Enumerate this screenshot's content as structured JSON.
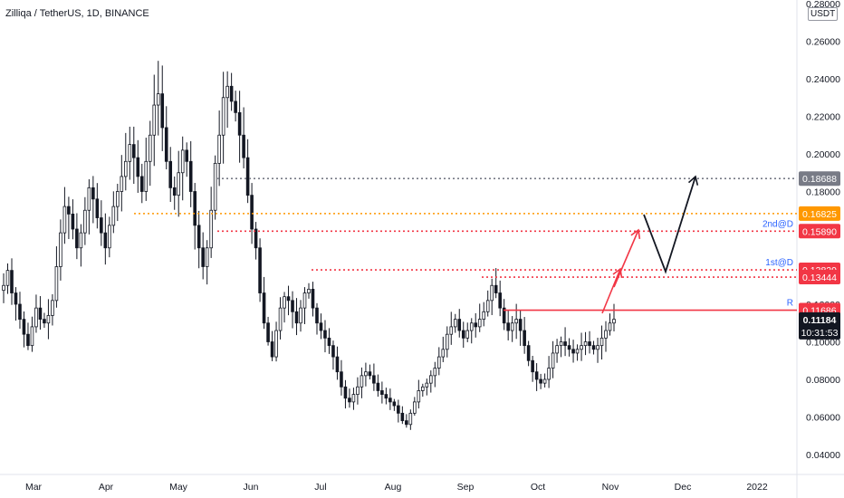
{
  "chart_data": {
    "type": "candlestick",
    "title": "Zilliqa / TetherUS, 1D, BINANCE",
    "unit": "USDT",
    "ylim": [
      0.03,
      0.28
    ],
    "y_ticks": [
      "0.28000",
      "0.26000",
      "0.24000",
      "0.22000",
      "0.20000",
      "0.18000",
      "0.16000",
      "0.14000",
      "0.12000",
      "0.10000",
      "0.08000",
      "0.06000",
      "0.04000"
    ],
    "x_ticks": [
      "Mar",
      "Apr",
      "May",
      "Jun",
      "Jul",
      "Aug",
      "Sep",
      "Oct",
      "Nov",
      "Dec",
      "2022"
    ],
    "colors": {
      "up": "#131722",
      "down": "#131722",
      "red": "#f23645",
      "orange": "#ff9800",
      "gray": "#787b86",
      "blue": "#2962ff"
    },
    "levels": [
      {
        "name": "target-3",
        "value": 0.18688,
        "label": "0.18688",
        "color": "#787b86",
        "style": "dotted"
      },
      {
        "name": "target-orange",
        "value": 0.16825,
        "label": "0.16825",
        "color": "#ff9800",
        "style": "dotted"
      },
      {
        "name": "second-target",
        "value": 0.1589,
        "label": "0.15890",
        "color": "#f23645",
        "style": "dotted",
        "tag": "2nd@D"
      },
      {
        "name": "first-target-high",
        "value": 0.13829,
        "label": "0.13829",
        "color": "#f23645",
        "style": "dotted",
        "tag": "1st@D"
      },
      {
        "name": "first-target-low",
        "value": 0.13444,
        "label": "0.13444",
        "color": "#f23645",
        "style": "dotted"
      },
      {
        "name": "resistance",
        "value": 0.11686,
        "label": "0.11686",
        "color": "#f23645",
        "style": "solid",
        "tag": "R"
      }
    ],
    "last_price": {
      "label": "0.11184",
      "countdown": "10:31:53",
      "value": 0.11184
    },
    "ohlc_samples": [
      0.13,
      0.138,
      0.126,
      0.12,
      0.112,
      0.104,
      0.098,
      0.108,
      0.118,
      0.112,
      0.11,
      0.114,
      0.122,
      0.14,
      0.158,
      0.172,
      0.168,
      0.16,
      0.15,
      0.158,
      0.17,
      0.182,
      0.176,
      0.166,
      0.158,
      0.15,
      0.162,
      0.172,
      0.18,
      0.188,
      0.196,
      0.205,
      0.198,
      0.188,
      0.18,
      0.196,
      0.21,
      0.226,
      0.232,
      0.214,
      0.196,
      0.182,
      0.178,
      0.19,
      0.202,
      0.196,
      0.18,
      0.162,
      0.15,
      0.14,
      0.15,
      0.17,
      0.195,
      0.21,
      0.23,
      0.236,
      0.228,
      0.222,
      0.21,
      0.198,
      0.178,
      0.16,
      0.15,
      0.126,
      0.11,
      0.1,
      0.092,
      0.106,
      0.118,
      0.124,
      0.122,
      0.116,
      0.11,
      0.118,
      0.126,
      0.128,
      0.118,
      0.11,
      0.106,
      0.102,
      0.098,
      0.092,
      0.084,
      0.076,
      0.07,
      0.068,
      0.072,
      0.076,
      0.082,
      0.084,
      0.082,
      0.078,
      0.074,
      0.072,
      0.07,
      0.068,
      0.066,
      0.062,
      0.058,
      0.056,
      0.062,
      0.068,
      0.074,
      0.076,
      0.078,
      0.082,
      0.086,
      0.092,
      0.096,
      0.104,
      0.108,
      0.112,
      0.106,
      0.102,
      0.106,
      0.11,
      0.108,
      0.112,
      0.116,
      0.122,
      0.13,
      0.126,
      0.118,
      0.11,
      0.106,
      0.11,
      0.112,
      0.106,
      0.098,
      0.09,
      0.084,
      0.08,
      0.078,
      0.08,
      0.086,
      0.094,
      0.098,
      0.1,
      0.098,
      0.096,
      0.094,
      0.096,
      0.098,
      0.1,
      0.098,
      0.096,
      0.098,
      0.102,
      0.106,
      0.11,
      0.112
    ],
    "annotations": [
      "2nd@D",
      "1st@D",
      "R"
    ]
  }
}
